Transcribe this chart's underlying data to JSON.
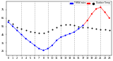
{
  "hours": [
    0,
    1,
    2,
    3,
    4,
    5,
    6,
    7,
    8,
    9,
    10,
    11,
    12,
    13,
    14,
    15,
    16,
    17,
    18,
    19,
    20,
    21,
    22,
    23
  ],
  "outdoor_temp": [
    62,
    58,
    54,
    52,
    50,
    49,
    48,
    47,
    47,
    49,
    51,
    54,
    56,
    57,
    57,
    56,
    55,
    54,
    54,
    53,
    52,
    51,
    51,
    50
  ],
  "thsw": [
    60,
    55,
    50,
    45,
    40,
    36,
    32,
    28,
    26,
    28,
    32,
    38,
    42,
    44,
    46,
    48,
    52,
    56,
    62,
    70,
    76,
    78,
    72,
    65
  ],
  "outdoor_temp_color": "#000000",
  "thsw_high_color": "#ff0000",
  "thsw_low_color": "#0000ff",
  "background_color": "#ffffff",
  "ylim": [
    20,
    85
  ],
  "xlim": [
    -0.5,
    23.5
  ],
  "ytick_vals": [
    25,
    35,
    45,
    55,
    65,
    75
  ],
  "ytick_labels": [
    "25",
    "35",
    "45",
    "55",
    "65",
    "75"
  ],
  "xticks": [
    0,
    1,
    2,
    3,
    4,
    5,
    6,
    7,
    8,
    9,
    10,
    11,
    12,
    13,
    14,
    15,
    16,
    17,
    18,
    19,
    20,
    21,
    22,
    23
  ],
  "grid_positions": [
    3,
    6,
    9,
    12,
    15,
    18,
    21
  ],
  "grid_color": "#aaaaaa",
  "thsw_threshold": 62,
  "legend_temp_label": "Outdoor Temp",
  "legend_thsw_label": "THSW Index",
  "dot_size_temp": 2.0,
  "dot_size_thsw": 2.5,
  "title_fontsize": 3.0,
  "tick_fontsize": 2.5
}
